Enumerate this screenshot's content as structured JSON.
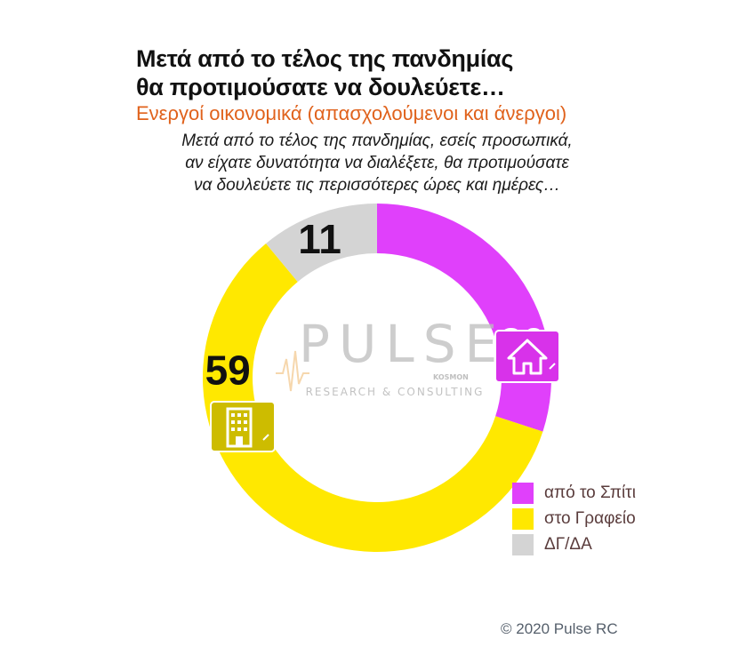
{
  "title_line1": "Μετά από το τέλος της πανδημίας",
  "title_line2": "θα προτιμούσατε να δουλεύετε…",
  "subtitle": "Ενεργοί οικονομικά  (απασχολούμενοι και άνεργοι)",
  "question": [
    "Μετά από το τέλος της πανδημίας, εσείς προσωπικά,",
    "αν είχατε δυνατότητα να διαλέξετε, θα προτιμούσατε",
    "να δουλεύετε τις περισσότερες ώρες και ημέρες…"
  ],
  "watermark": {
    "name": "PULSE",
    "tagline": "RESEARCH & CONSULTING",
    "partner": "KOSMON"
  },
  "copyright": "© 2020 Pulse RC",
  "chart_data": {
    "type": "pie",
    "style": "donut",
    "categories": [
      "από το Σπίτι",
      "στο Γραφείο",
      "ΔΓ/ΔΑ"
    ],
    "values": [
      30,
      59,
      11
    ],
    "colors": [
      "#e040fb",
      "#ffe800",
      "#d4d4d4"
    ],
    "label_colors": [
      "#ffffff",
      "#111111",
      "#111111"
    ],
    "start": "12 o'clock",
    "direction": "clockwise",
    "legend_position": "bottom-right",
    "icons": [
      "house-icon",
      "office-building-icon"
    ]
  }
}
